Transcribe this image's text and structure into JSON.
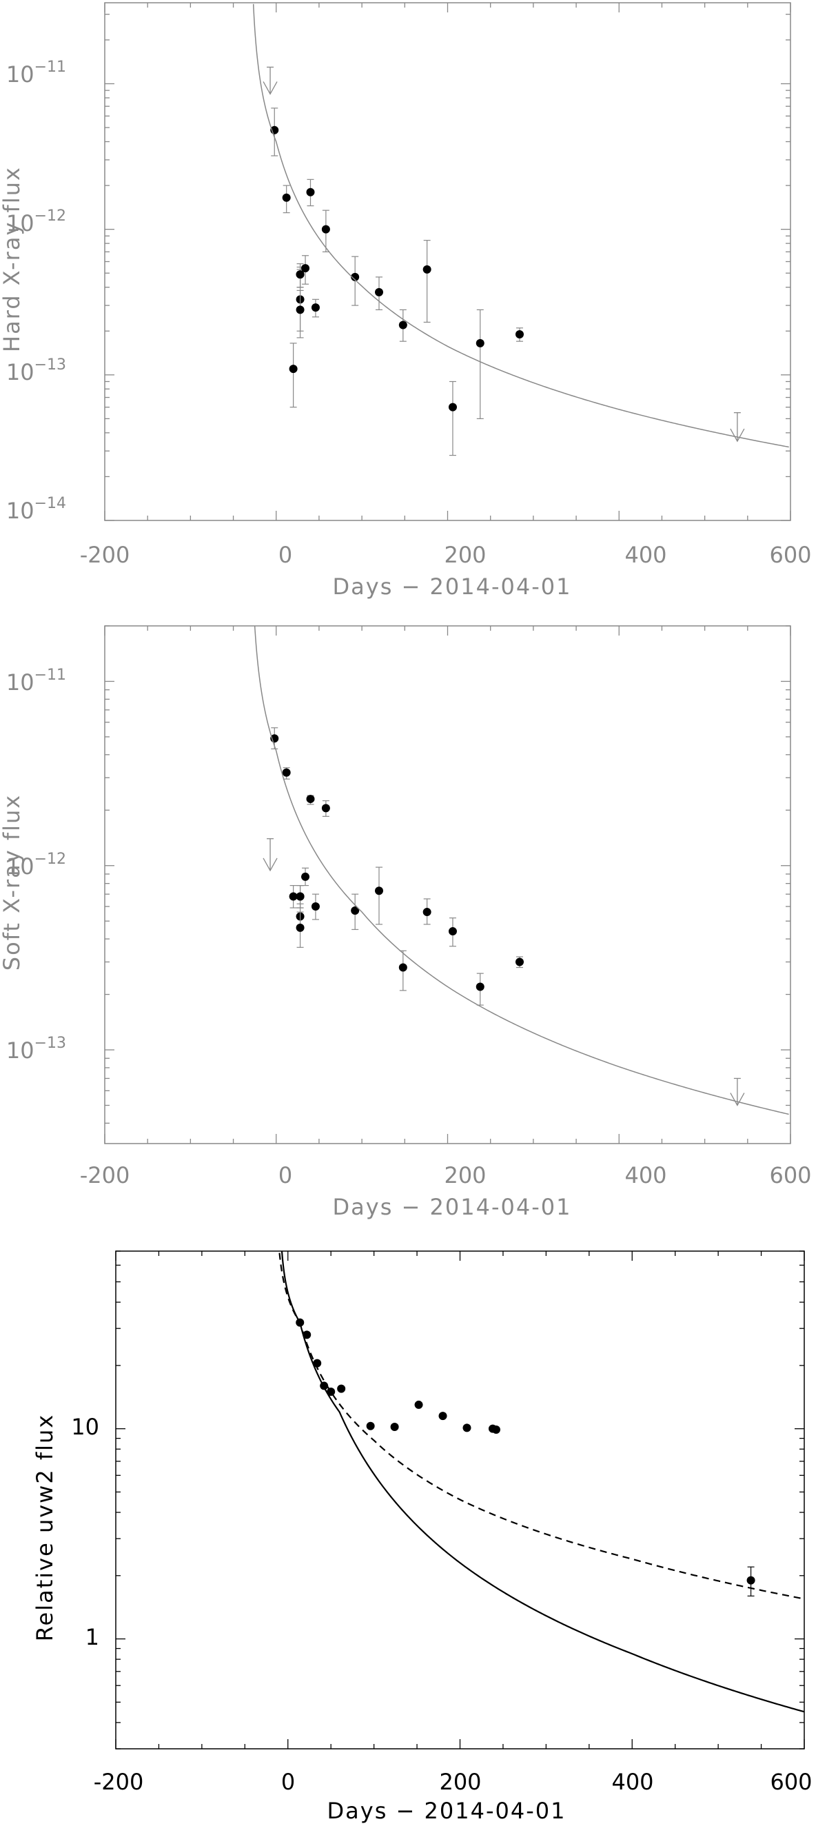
{
  "chart_data": [
    {
      "type": "scatter",
      "xlabel": "Days − 2014-04-01",
      "ylabel": "Hard X-ray flux",
      "xlim": [
        -200,
        600
      ],
      "ylim": [
        1e-14,
        3.6e-11
      ],
      "yscale": "log",
      "xticks": [
        -200,
        0,
        200,
        400,
        600
      ],
      "yticks": [
        1e-14,
        1e-13,
        1e-12,
        1e-11
      ],
      "ytick_labels": [
        {
          "base": "10",
          "exp": "−14"
        },
        {
          "base": "10",
          "exp": "−13"
        },
        {
          "base": "10",
          "exp": "−12"
        },
        {
          "base": "10",
          "exp": "−11"
        }
      ],
      "color": "#888888",
      "series": [
        {
          "kind": "points",
          "x": [
            -2,
            12,
            20,
            28,
            28,
            28,
            28,
            34,
            40,
            46,
            58,
            92,
            120,
            148,
            176,
            206,
            238,
            284
          ],
          "y": [
            4.8e-12,
            1.65e-12,
            1.1e-13,
            4.9e-13,
            3.3e-13,
            2.8e-13,
            4.9e-13,
            5.4e-13,
            1.8e-12,
            2.9e-13,
            1e-12,
            4.7e-13,
            3.7e-13,
            2.2e-13,
            5.3e-13,
            6e-14,
            1.65e-13,
            1.9e-13
          ],
          "y_lo": [
            3.2e-12,
            1.3e-12,
            6e-14,
            4e-13,
            1.8e-13,
            2e-13,
            4e-13,
            4.2e-13,
            1.45e-12,
            2.5e-13,
            7e-13,
            3e-13,
            2.8e-13,
            1.7e-13,
            2.3e-13,
            2.8e-14,
            5e-14,
            1.7e-13
          ],
          "y_hi": [
            6.8e-12,
            2e-12,
            1.65e-13,
            5.5e-13,
            5.3e-13,
            3.8e-13,
            5.8e-13,
            6.6e-13,
            2.2e-12,
            3.3e-13,
            1.35e-12,
            6.5e-13,
            4.7e-13,
            2.8e-13,
            8.4e-13,
            9e-14,
            2.8e-13,
            2.1e-13
          ]
        },
        {
          "kind": "upper_limits",
          "x": [
            -7,
            538
          ],
          "y": [
            1.3e-11,
            5.5e-14
          ],
          "y_lo": [
            8.5e-12,
            3.5e-14
          ]
        },
        {
          "kind": "model_curve",
          "t0": -30,
          "x_start": -26.6,
          "dash": false,
          "points": [
            [
              -26,
              3e-11
            ],
            [
              0,
              4e-12
            ],
            [
              100,
              4.07e-13
            ],
            [
              200,
              1.57e-13
            ],
            [
              400,
              5.79e-14
            ],
            [
              600,
              3.18e-14
            ]
          ]
        }
      ]
    },
    {
      "type": "scatter",
      "xlabel": "Days − 2014-04-01",
      "ylabel": "Soft X-ray flux",
      "xlim": [
        -200,
        600
      ],
      "ylim": [
        3.1e-14,
        2e-11
      ],
      "yscale": "log",
      "xticks": [
        -200,
        0,
        200,
        400,
        600
      ],
      "yticks": [
        1e-13,
        1e-12,
        1e-11
      ],
      "ytick_labels": [
        {
          "base": "10",
          "exp": "−13"
        },
        {
          "base": "10",
          "exp": "−12"
        },
        {
          "base": "10",
          "exp": "−11"
        }
      ],
      "color": "#888888",
      "series": [
        {
          "kind": "points",
          "x": [
            -2,
            12,
            20,
            28,
            28,
            28,
            28,
            34,
            40,
            46,
            58,
            92,
            120,
            148,
            176,
            206,
            238,
            284
          ],
          "y": [
            4.9e-12,
            3.2e-12,
            6.8e-13,
            6.8e-13,
            5.3e-13,
            4.6e-13,
            6.8e-13,
            8.7e-13,
            2.3e-12,
            6e-13,
            2.05e-12,
            5.7e-13,
            7.3e-13,
            2.8e-13,
            5.6e-13,
            4.4e-13,
            2.2e-13,
            3e-13
          ],
          "y_lo": [
            4.3e-12,
            2.95e-12,
            5.9e-13,
            5.9e-13,
            4.5e-13,
            3.6e-13,
            5.9e-13,
            7.8e-13,
            2.15e-12,
            5.1e-13,
            1.85e-12,
            4.5e-13,
            4.8e-13,
            2.1e-13,
            4.8e-13,
            3.65e-13,
            1.75e-13,
            2.8e-13
          ],
          "y_hi": [
            5.6e-12,
            3.4e-12,
            7.8e-13,
            7.8e-13,
            6.2e-13,
            5.6e-13,
            7.8e-13,
            9.7e-13,
            2.4e-12,
            7e-13,
            2.25e-12,
            7e-13,
            9.8e-13,
            3.45e-13,
            6.6e-13,
            5.2e-13,
            2.6e-13,
            3.2e-13
          ]
        },
        {
          "kind": "upper_limits",
          "x": [
            -7,
            538
          ],
          "y": [
            1.4e-12,
            7e-14
          ],
          "y_lo": [
            9.4e-13,
            5e-14
          ]
        },
        {
          "kind": "model_curve",
          "t0": -30,
          "x_start": -25.2,
          "dash": false,
          "points": [
            [
              -25,
              2e-11
            ],
            [
              0,
              4.2e-12
            ],
            [
              100,
              5.6e-13
            ],
            [
              200,
              2.2e-13
            ],
            [
              400,
              8.1e-14
            ],
            [
              600,
              4.45e-14
            ]
          ]
        }
      ]
    },
    {
      "type": "scatter",
      "xlabel": "Days − 2014-04-01",
      "ylabel": "Relative uvw2 flux",
      "xlim": [
        -200,
        600
      ],
      "ylim": [
        0.3,
        70
      ],
      "yscale": "log",
      "xticks": [
        -200,
        0,
        200,
        400,
        600
      ],
      "yticks": [
        1,
        10
      ],
      "ytick_labels": [
        {
          "base": "1",
          "exp": ""
        },
        {
          "base": "10",
          "exp": ""
        }
      ],
      "color": "#000000",
      "series": [
        {
          "kind": "points",
          "x": [
            14,
            22,
            34,
            42,
            50,
            62,
            96,
            124,
            152,
            180,
            208,
            238,
            242
          ],
          "y": [
            32,
            28,
            20.5,
            16,
            15,
            15.5,
            10.3,
            10.2,
            13,
            11.5,
            10.1,
            10.0,
            9.9
          ],
          "y_lo": [
            null,
            null,
            null,
            null,
            null,
            null,
            null,
            null,
            null,
            null,
            null,
            null,
            null
          ],
          "y_hi": [
            null,
            null,
            null,
            null,
            null,
            null,
            null,
            null,
            null,
            null,
            null,
            null,
            null
          ]
        },
        {
          "kind": "points",
          "x": [
            538
          ],
          "y": [
            1.9
          ],
          "y_lo": [
            1.6
          ],
          "y_hi": [
            2.2
          ]
        },
        {
          "kind": "model_curve",
          "t0": -10,
          "x_start": -7,
          "dash": false,
          "points": [
            [
              -7,
              70
            ],
            [
              14,
              32
            ],
            [
              60,
              12
            ],
            [
              200,
              2.3
            ],
            [
              400,
              0.85
            ],
            [
              600,
              0.45
            ]
          ]
        },
        {
          "kind": "model_curve",
          "t0": -14,
          "x_start": -9.8,
          "dash": true,
          "points": [
            [
              -10,
              70
            ],
            [
              14,
              32
            ],
            [
              100,
              8.8
            ],
            [
              200,
              4.6
            ],
            [
              400,
              2.4
            ],
            [
              600,
              1.55
            ]
          ]
        }
      ]
    }
  ]
}
